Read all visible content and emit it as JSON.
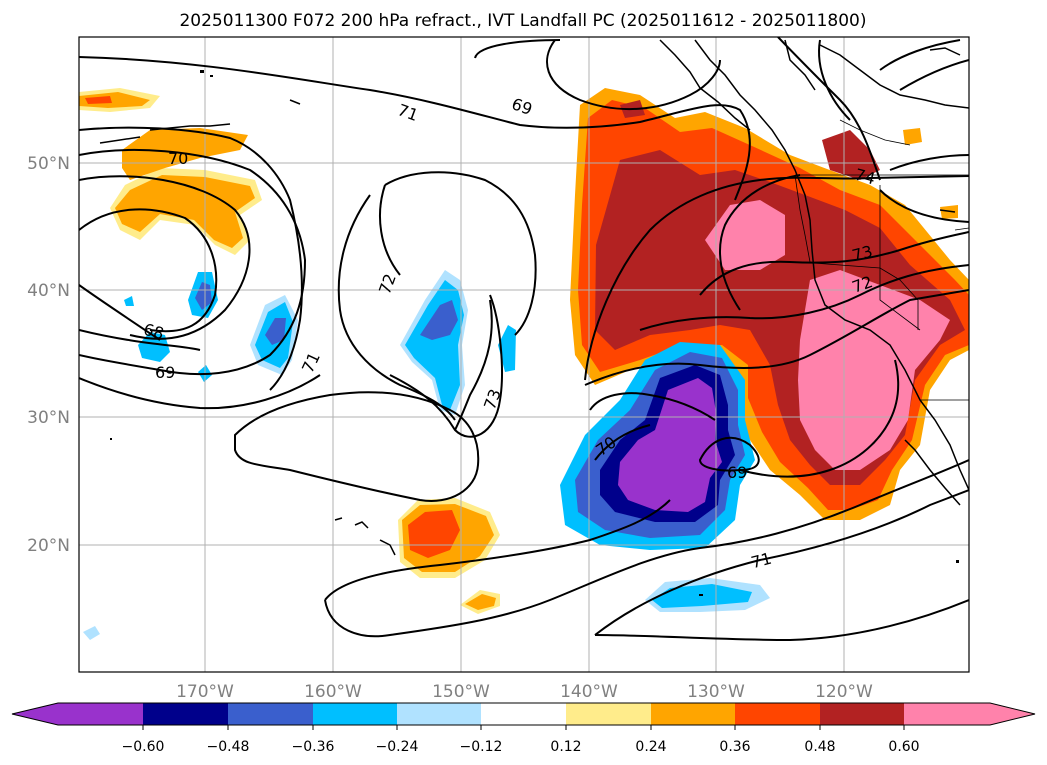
{
  "title": "2025011300 F072 200 hPa refract., IVT Landfall PC (2025011612 - 2025011800)",
  "map": {
    "lat_labels": [
      "50°N",
      "40°N",
      "30°N",
      "20°N"
    ],
    "lon_labels": [
      "170°W",
      "160°W",
      "150°W",
      "140°W",
      "130°W",
      "120°W"
    ],
    "contour_labels": [
      "70",
      "71",
      "69",
      "72",
      "73",
      "68",
      "69",
      "71",
      "74",
      "73",
      "72",
      "70",
      "69",
      "71"
    ],
    "colors": {
      "c_neg_lt060": "#9932cc",
      "c_neg_048": "#00008b",
      "c_neg_036": "#3a5fcd",
      "c_neg_024": "#00bfff",
      "c_neg_012": "#b0e2ff",
      "c_zero": "#ffffff",
      "c_pos_012": "#ffec8b",
      "c_pos_024": "#ffa500",
      "c_pos_036": "#ff4500",
      "c_pos_048": "#b22222",
      "c_pos_gt060": "#ff82ab"
    }
  },
  "colorbar": {
    "ticks": [
      "−0.60",
      "−0.48",
      "−0.36",
      "−0.24",
      "−0.12",
      "0.12",
      "0.24",
      "0.36",
      "0.48",
      "0.60"
    ],
    "bins": [
      "#9932cc",
      "#00008b",
      "#3a5fcd",
      "#00bfff",
      "#b0e2ff",
      "#ffffff",
      "#ffec8b",
      "#ffa500",
      "#ff4500",
      "#b22222",
      "#ff82ab"
    ]
  }
}
